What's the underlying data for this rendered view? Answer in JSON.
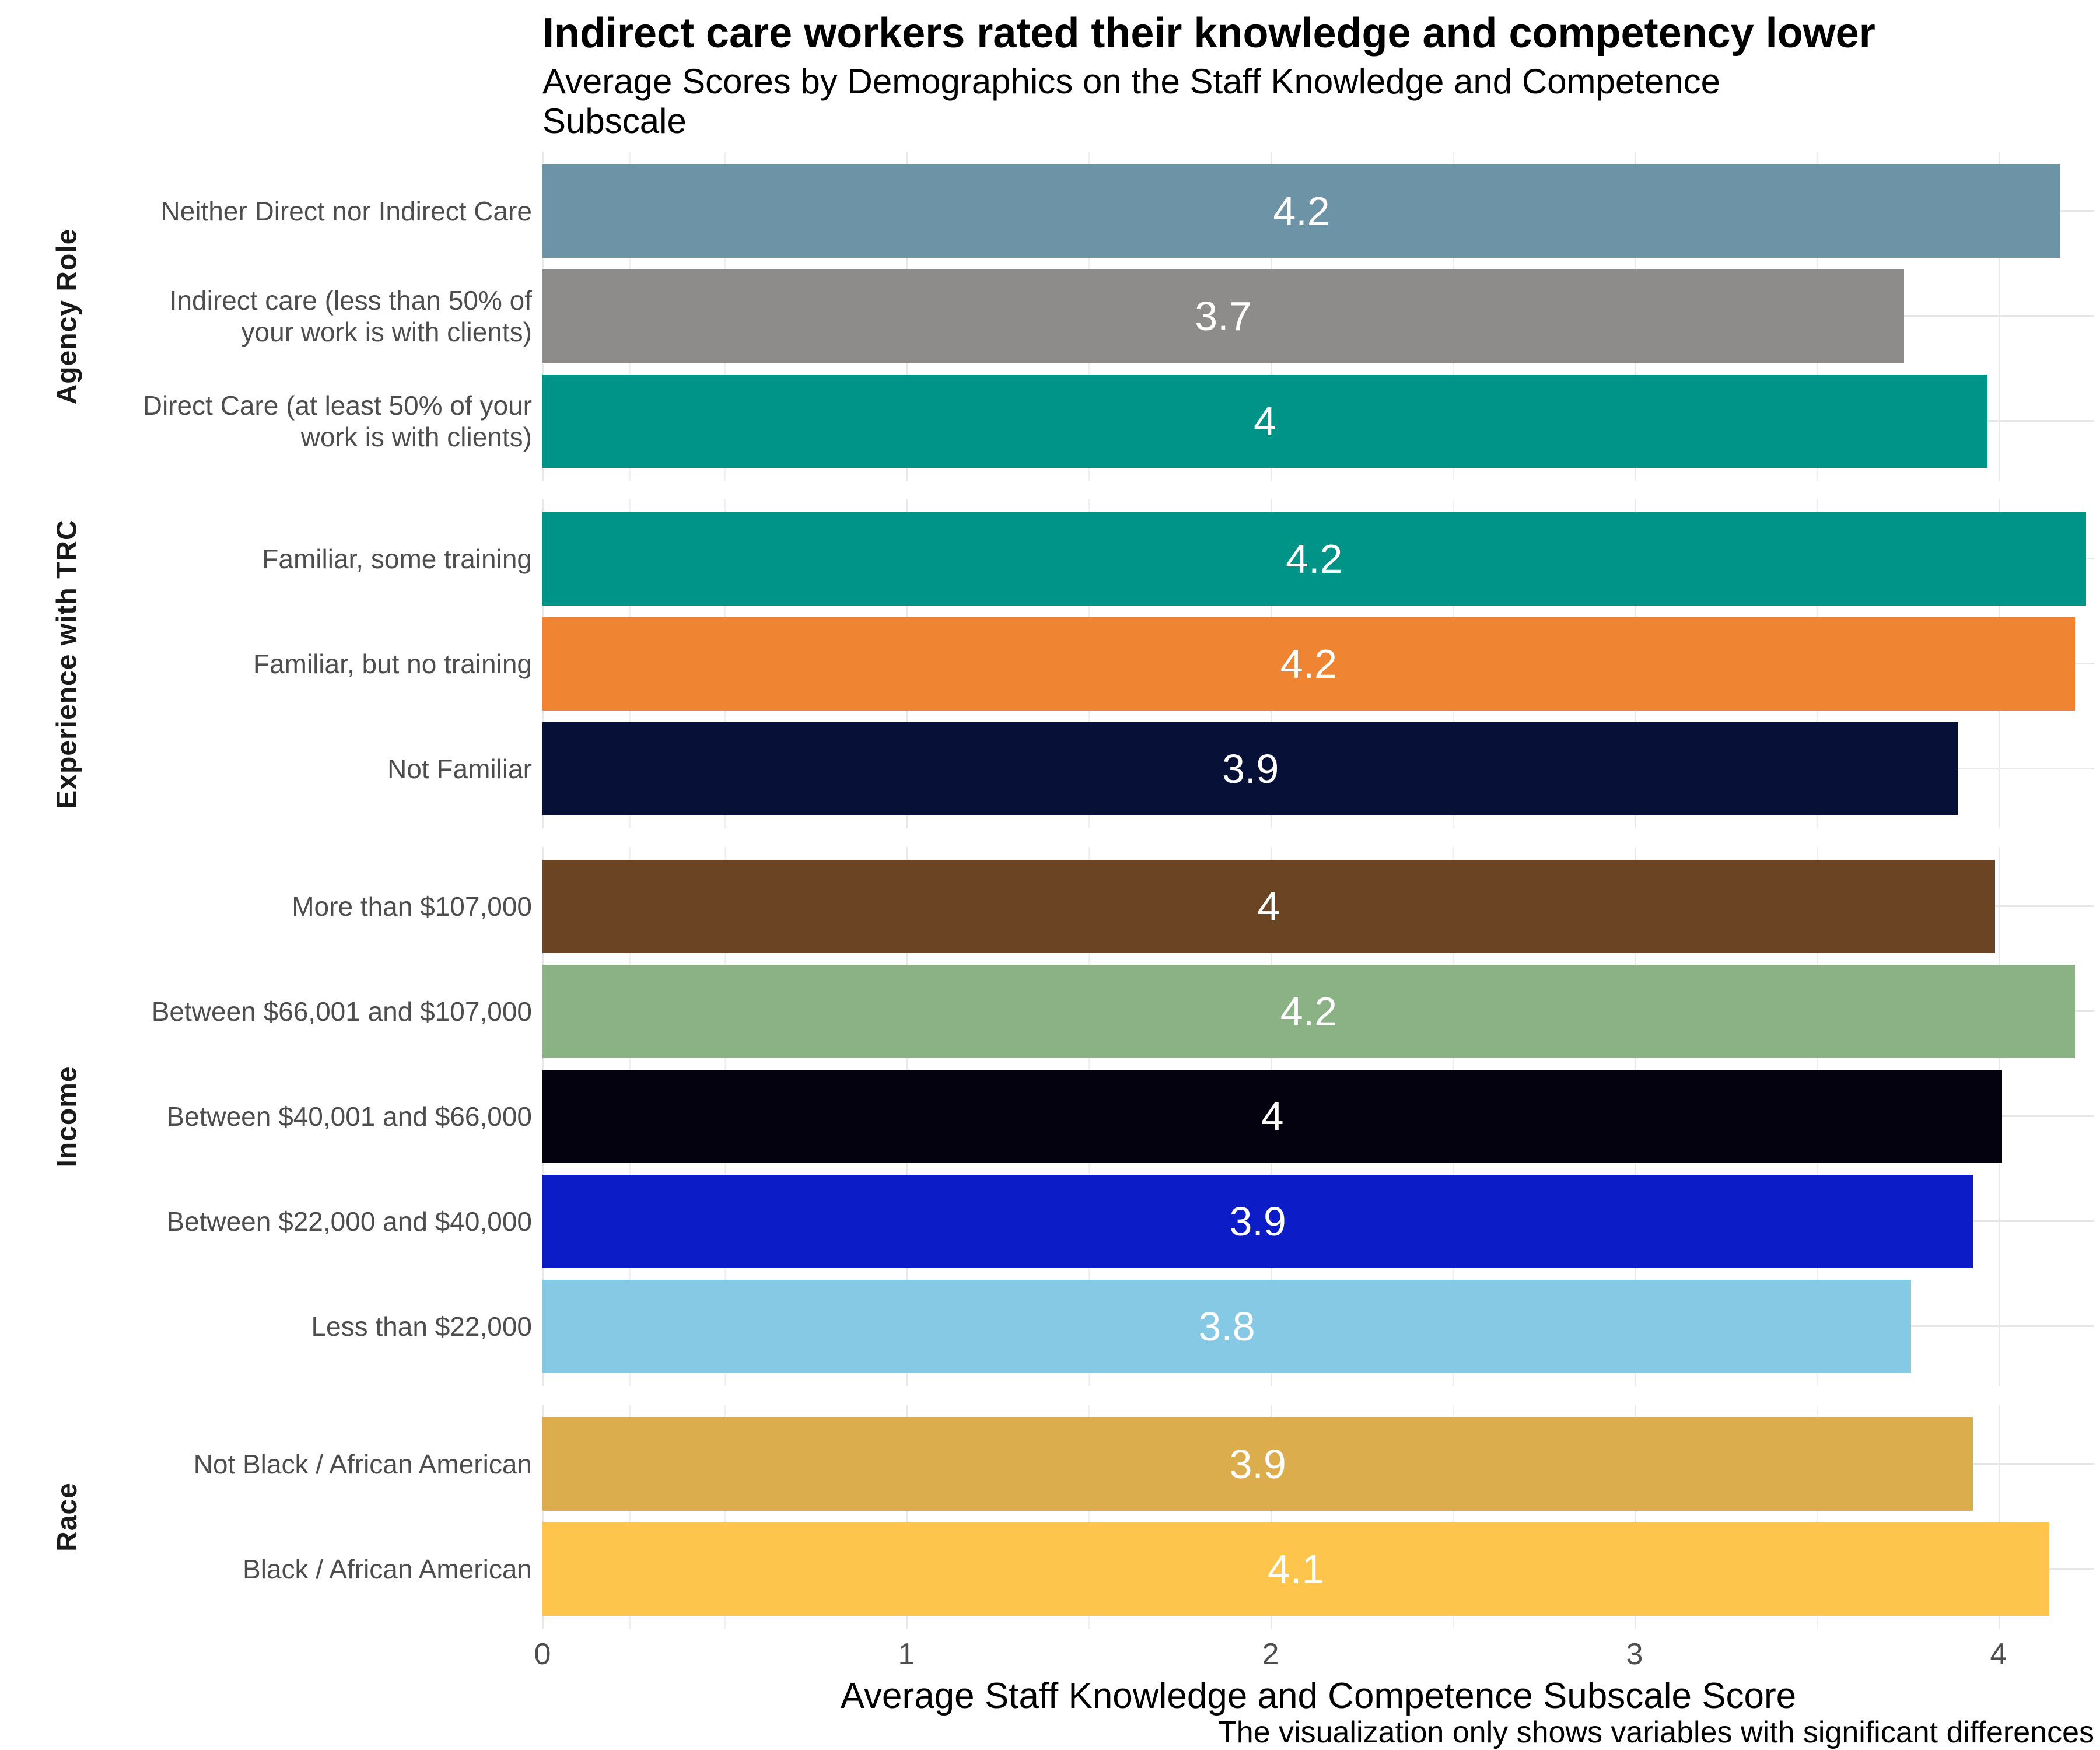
{
  "header": {
    "title": "Indirect care workers rated their knowledge and competency lower",
    "subtitle_line1": "Average Scores by Demographics on the Staff Knowledge and Competence",
    "subtitle_line2": "Subscale"
  },
  "axis": {
    "ticks": [
      "0",
      "1",
      "2",
      "3",
      "4"
    ],
    "title": "Average Staff Knowledge and Competence Subscale Score"
  },
  "caption": "The visualization only shows variables with significant differences",
  "chart_data": {
    "type": "bar",
    "orientation": "horizontal",
    "title": "Indirect care workers rated their knowledge and competency lower",
    "subtitle": "Average Scores by Demographics on the Staff Knowledge and Competence Subscale",
    "xlabel": "Average Staff Knowledge and Competence Subscale Score",
    "ylabel": "",
    "xlim": [
      0,
      4.263
    ],
    "xticks": [
      0,
      1,
      2,
      3,
      4
    ],
    "grid": "vertical major at integers and minor at halves, light gray; horizontal line at each category center",
    "legend_position": "none",
    "value_label_style": "white, centered inside bar",
    "groups": [
      {
        "name": "Agency Role",
        "rows": [
          {
            "label": "Neither Direct nor Indirect Care",
            "value_label": "4.2",
            "value": 4.17,
            "color": "#6d93a6"
          },
          {
            "label": "Indirect care (less than 50% of your work is with clients)",
            "value_label": "3.7",
            "value": 3.74,
            "color": "#8e8c8b"
          },
          {
            "label": "Direct Care (at least 50% of your work is with clients)",
            "value_label": "4",
            "value": 3.97,
            "color": "#009489"
          }
        ]
      },
      {
        "name": "Experience with TRC",
        "rows": [
          {
            "label": "Familiar, some training",
            "value_label": "4.2",
            "value": 4.24,
            "color": "#009489"
          },
          {
            "label": "Familiar, but no training",
            "value_label": "4.2",
            "value": 4.21,
            "color": "#ef8532"
          },
          {
            "label": "Not Familiar",
            "value_label": "3.9",
            "value": 3.89,
            "color": "#071036"
          }
        ]
      },
      {
        "name": "Income",
        "rows": [
          {
            "label": "More than $107,000",
            "value_label": "4",
            "value": 3.99,
            "color": "#6b4423"
          },
          {
            "label": "Between $66,001 and $107,000",
            "value_label": "4.2",
            "value": 4.21,
            "color": "#8bb284"
          },
          {
            "label": "Between $40,001 and $66,000",
            "value_label": "4",
            "value": 4.01,
            "color": "#04020e"
          },
          {
            "label": "Between $22,000 and $40,000",
            "value_label": "3.9",
            "value": 3.93,
            "color": "#0c1cc7"
          },
          {
            "label": "Less than $22,000",
            "value_label": "3.8",
            "value": 3.76,
            "color": "#85c9e5"
          }
        ]
      },
      {
        "name": "Race",
        "rows": [
          {
            "label": "Not Black / African American",
            "value_label": "3.9",
            "value": 3.93,
            "color": "#dcad4c"
          },
          {
            "label": "Black / African American",
            "value_label": "4.1",
            "value": 4.14,
            "color": "#fdc54c"
          }
        ]
      }
    ]
  }
}
